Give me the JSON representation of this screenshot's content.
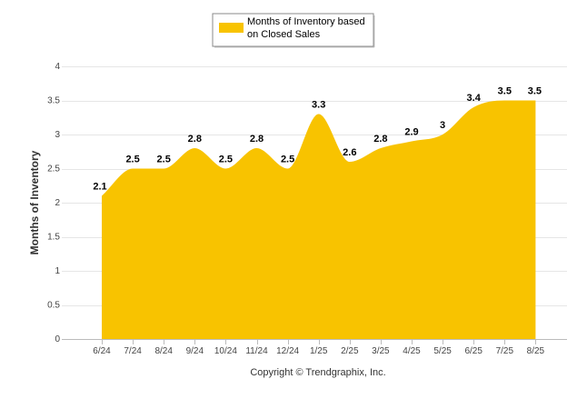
{
  "chart_data": {
    "type": "area",
    "categories": [
      "6/24",
      "7/24",
      "8/24",
      "9/24",
      "10/24",
      "11/24",
      "12/24",
      "1/25",
      "2/25",
      "3/25",
      "4/25",
      "5/25",
      "6/25",
      "7/25",
      "8/25"
    ],
    "series": [
      {
        "name": "Months of Inventory based on Closed Sales",
        "values": [
          2.1,
          2.5,
          2.5,
          2.8,
          2.5,
          2.8,
          2.5,
          3.3,
          2.6,
          2.8,
          2.9,
          3,
          3.4,
          3.5,
          3.5
        ],
        "data_labels": [
          "2.1",
          "2.5",
          "2.5",
          "2.8",
          "2.5",
          "2.8",
          "2.5",
          "3.3",
          "2.6",
          "2.8",
          "2.9",
          "3",
          "3.4",
          "3.5",
          "3.5"
        ]
      }
    ],
    "legend_lines": [
      "Months of Inventory based",
      "on Closed Sales"
    ],
    "ylabel": "Months of Inventory",
    "ylim": [
      0,
      4
    ],
    "yticks": [
      0,
      0.5,
      1,
      1.5,
      2,
      2.5,
      3,
      3.5,
      4
    ],
    "ytick_labels": [
      "0",
      "0.5",
      "1",
      "1.5",
      "2",
      "2.5",
      "3",
      "3.5",
      "4"
    ],
    "grid": true,
    "legend_position": "top-center",
    "area_color": "#F8C300",
    "grid_color": "#E6E6E6",
    "footer": "Copyright © Trendgraphix, Inc."
  }
}
